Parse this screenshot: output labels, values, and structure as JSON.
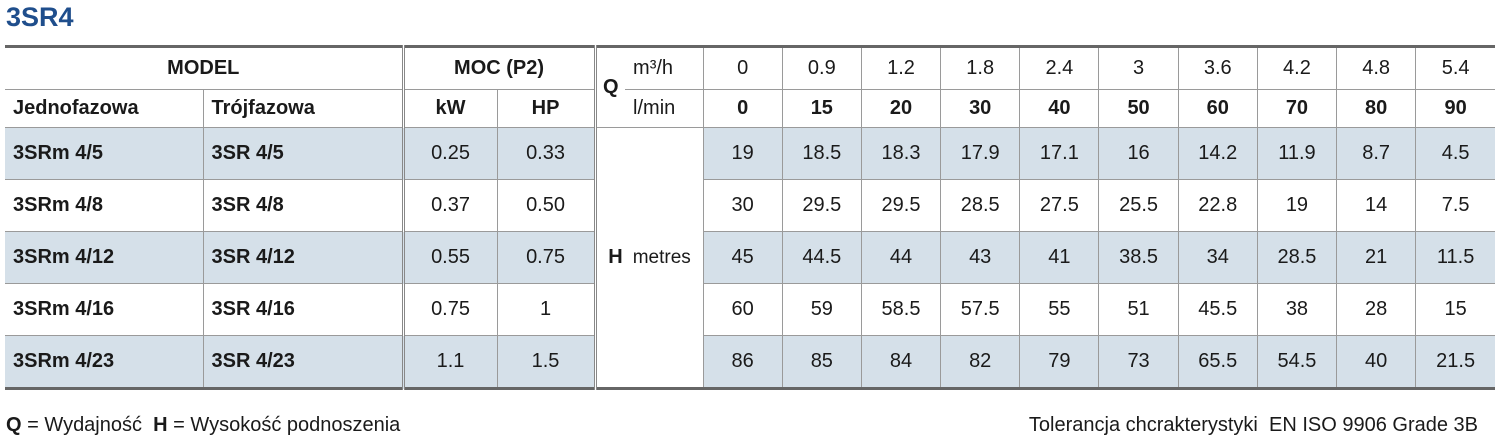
{
  "title": "3SR4",
  "header": {
    "model": "MODEL",
    "power": "MOC (P2)",
    "single_phase": "Jednofazowa",
    "three_phase": "Trójfazowa",
    "kw": "kW",
    "hp": "HP",
    "q": "Q",
    "unit_m3h": "m³/h",
    "unit_lmin": "l/min",
    "flow_m3h": [
      "0",
      "0.9",
      "1.2",
      "1.8",
      "2.4",
      "3",
      "3.6",
      "4.2",
      "4.8",
      "5.4"
    ],
    "flow_lmin": [
      "0",
      "15",
      "20",
      "30",
      "40",
      "50",
      "60",
      "70",
      "80",
      "90"
    ]
  },
  "h_label": {
    "symbol": "H",
    "unit": "metres"
  },
  "table": {
    "rows": [
      [
        "3SRm 4/5",
        "3SR 4/5",
        "0.25",
        "0.33",
        "19",
        "18.5",
        "18.3",
        "17.9",
        "17.1",
        "16",
        "14.2",
        "11.9",
        "8.7",
        "4.5"
      ],
      [
        "3SRm 4/8",
        "3SR 4/8",
        "0.37",
        "0.50",
        "30",
        "29.5",
        "29.5",
        "28.5",
        "27.5",
        "25.5",
        "22.8",
        "19",
        "14",
        "7.5"
      ],
      [
        "3SRm 4/12",
        "3SR 4/12",
        "0.55",
        "0.75",
        "45",
        "44.5",
        "44",
        "43",
        "41",
        "38.5",
        "34",
        "28.5",
        "21",
        "11.5"
      ],
      [
        "3SRm 4/16",
        "3SR 4/16",
        "0.75",
        "1",
        "60",
        "59",
        "58.5",
        "57.5",
        "55",
        "51",
        "45.5",
        "38",
        "28",
        "15"
      ],
      [
        "3SRm 4/23",
        "3SR 4/23",
        "1.1",
        "1.5",
        "86",
        "85",
        "84",
        "82",
        "79",
        "73",
        "65.5",
        "54.5",
        "40",
        "21.5"
      ]
    ]
  },
  "footer": {
    "q_symbol": "Q",
    "q_text": "= Wydajność",
    "h_symbol": "H",
    "h_text": "= Wysokość podnoszenia",
    "tolerance": "Tolerancja chcrakterystyki  EN ISO 9906 Grade 3B"
  }
}
